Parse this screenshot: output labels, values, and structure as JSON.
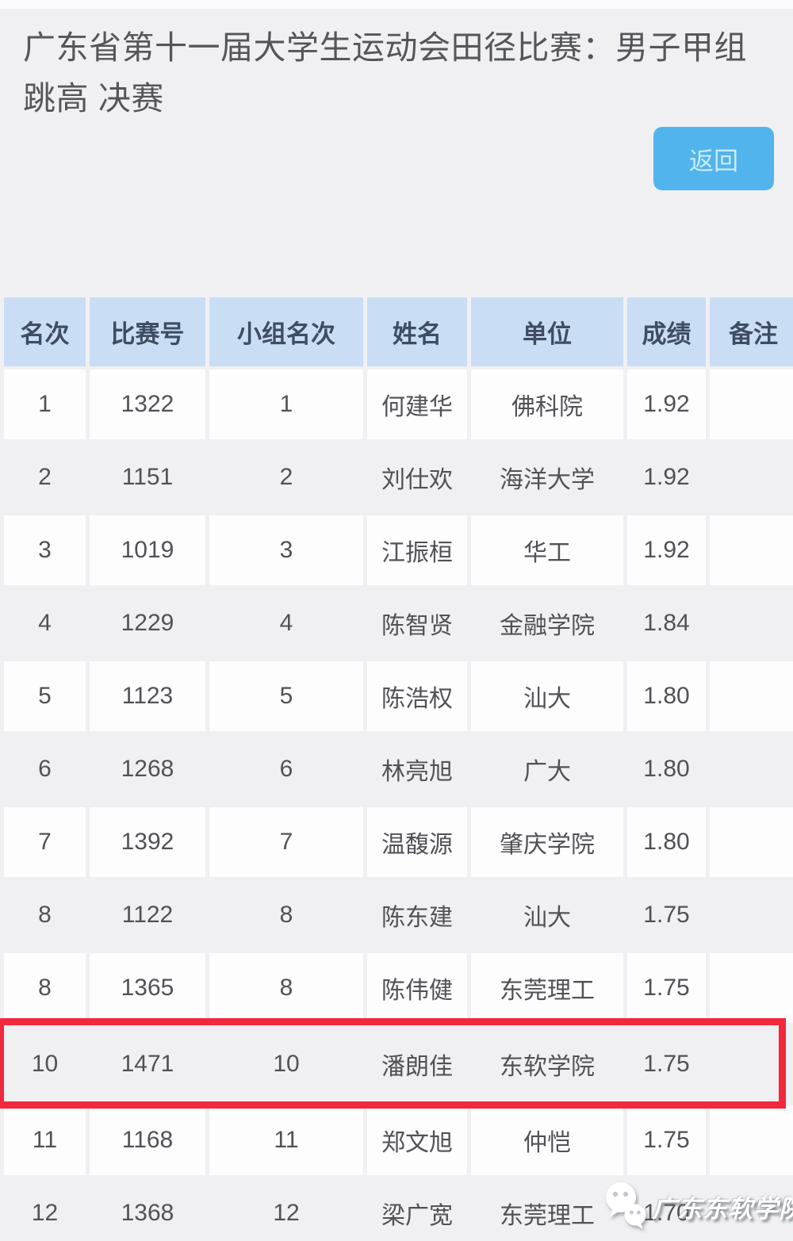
{
  "page": {
    "title": "广东省第十一届大学生运动会田径比赛：男子甲组跳高 决赛",
    "back_button": "返回"
  },
  "table": {
    "headers": [
      "名次",
      "比赛号",
      "小组名次",
      "姓名",
      "单位",
      "成绩",
      "备注"
    ],
    "rows": [
      [
        "1",
        "1322",
        "1",
        "何建华",
        "佛科院",
        "1.92",
        ""
      ],
      [
        "2",
        "1151",
        "2",
        "刘仕欢",
        "海洋大学",
        "1.92",
        ""
      ],
      [
        "3",
        "1019",
        "3",
        "江振桓",
        "华工",
        "1.92",
        ""
      ],
      [
        "4",
        "1229",
        "4",
        "陈智贤",
        "金融学院",
        "1.84",
        ""
      ],
      [
        "5",
        "1123",
        "5",
        "陈浩权",
        "汕大",
        "1.80",
        ""
      ],
      [
        "6",
        "1268",
        "6",
        "林亮旭",
        "广大",
        "1.80",
        ""
      ],
      [
        "7",
        "1392",
        "7",
        "温馥源",
        "肇庆学院",
        "1.80",
        ""
      ],
      [
        "8",
        "1122",
        "8",
        "陈东建",
        "汕大",
        "1.75",
        ""
      ],
      [
        "8",
        "1365",
        "8",
        "陈伟健",
        "东莞理工",
        "1.75",
        ""
      ],
      [
        "10",
        "1471",
        "10",
        "潘朗佳",
        "东软学院",
        "1.75",
        ""
      ],
      [
        "11",
        "1168",
        "11",
        "郑文旭",
        "仲恺",
        "1.75",
        ""
      ],
      [
        "12",
        "1368",
        "12",
        "梁广宽",
        "东莞理工",
        "1.70",
        ""
      ]
    ],
    "highlighted_row_index": 9,
    "column_keys": [
      "rank",
      "bib",
      "group-rank",
      "name",
      "unit",
      "result",
      "remark"
    ]
  },
  "watermark": {
    "icon": "wechat-icon",
    "text": "广东东软学院"
  },
  "colors": {
    "page_bg": "#f0f0f3",
    "title_text": "#55565c",
    "button_bg": "#52b4ec",
    "button_text": "#c9ecfc",
    "header_bg": "#c9def4",
    "header_text": "#3e4d62",
    "body_text": "#515156",
    "row_odd_bg": "#fdfdfe",
    "row_even_bg": "#f0f0f2",
    "highlight_red": "#f2283c"
  }
}
